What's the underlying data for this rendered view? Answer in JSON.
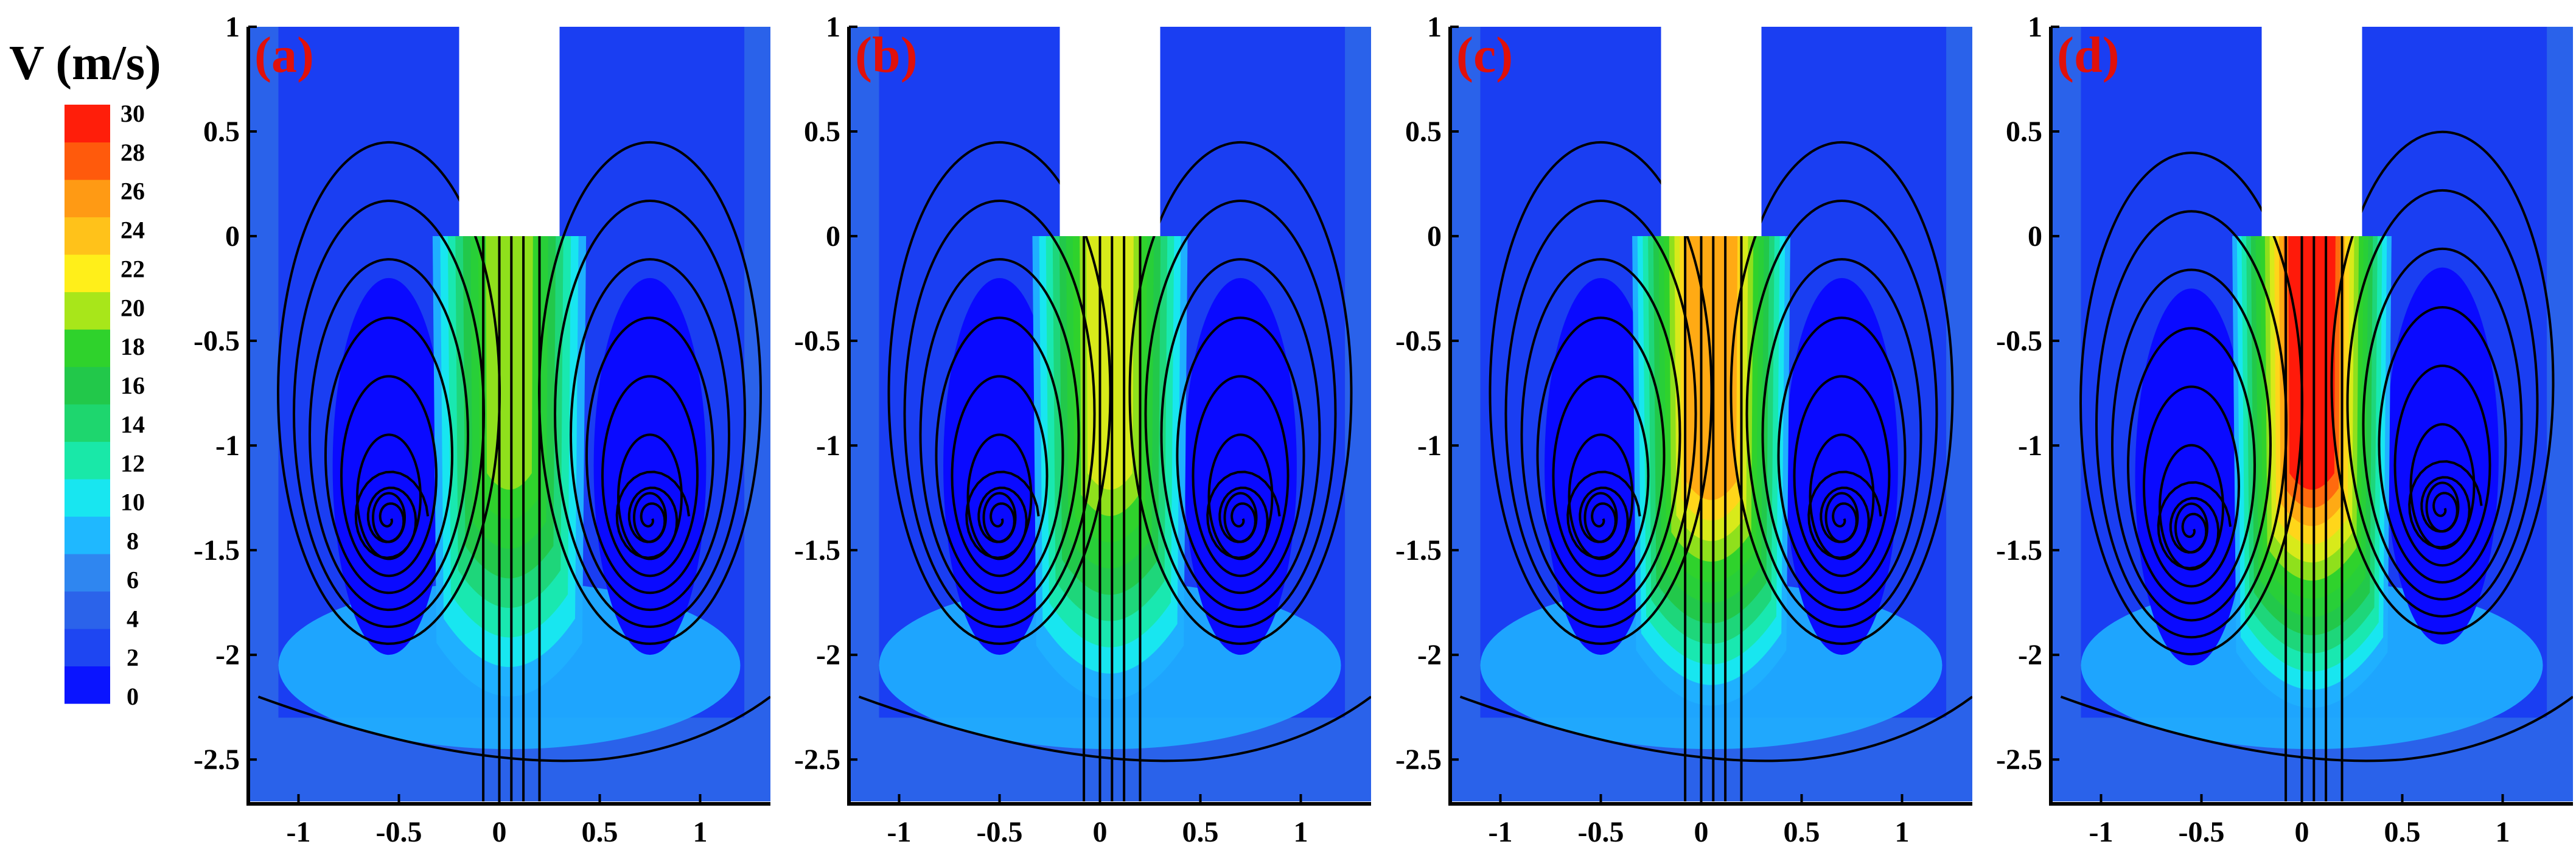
{
  "chart_data": [
    {
      "type": "heatmap",
      "panel": "(a)",
      "colorbar_title": "V (m/s)",
      "jet_max_velocity": 20,
      "xlim": [
        -1.25,
        1.35
      ],
      "ylim": [
        -2.7,
        1.0
      ],
      "xticks": [
        -1,
        -0.5,
        0,
        0.5,
        1
      ],
      "yticks": [
        1,
        0.5,
        0,
        -0.5,
        -1,
        -1.5,
        -2,
        -2.5
      ],
      "vortex_centers": [
        [
          -0.55,
          -1.35
        ],
        [
          0.75,
          -1.35
        ]
      ]
    },
    {
      "type": "heatmap",
      "panel": "(b)",
      "jet_max_velocity": 22,
      "xlim": [
        -1.25,
        1.35
      ],
      "ylim": [
        -2.7,
        1.0
      ],
      "xticks": [
        -1,
        -0.5,
        0,
        0.5,
        1
      ],
      "yticks": [
        1,
        0.5,
        0,
        -0.5,
        -1,
        -1.5,
        -2,
        -2.5
      ],
      "vortex_centers": [
        [
          -0.5,
          -1.35
        ],
        [
          0.7,
          -1.35
        ]
      ]
    },
    {
      "type": "heatmap",
      "panel": "(c)",
      "jet_max_velocity": 27,
      "xlim": [
        -1.25,
        1.35
      ],
      "ylim": [
        -2.7,
        1.0
      ],
      "xticks": [
        -1,
        -0.5,
        0,
        0.5,
        1
      ],
      "yticks": [
        1,
        0.5,
        0,
        -0.5,
        -1,
        -1.5,
        -2,
        -2.5
      ],
      "vortex_centers": [
        [
          -0.5,
          -1.35
        ],
        [
          0.7,
          -1.35
        ]
      ]
    },
    {
      "type": "heatmap",
      "panel": "(d)",
      "jet_max_velocity": 30,
      "xlim": [
        -1.25,
        1.35
      ],
      "ylim": [
        -2.7,
        1.0
      ],
      "xticks": [
        -1,
        -0.5,
        0,
        0.5,
        1
      ],
      "yticks": [
        1,
        0.5,
        0,
        -0.5,
        -1,
        -1.5,
        -2,
        -2.5
      ],
      "vortex_centers": [
        [
          -0.55,
          -1.4
        ],
        [
          0.7,
          -1.3
        ]
      ]
    }
  ],
  "colorbar": {
    "title": "V (m/s)",
    "labels": [
      "30",
      "28",
      "26",
      "24",
      "22",
      "20",
      "18",
      "16",
      "14",
      "12",
      "10",
      "8",
      "6",
      "4",
      "2",
      "0"
    ],
    "colors": [
      "#0a14ff",
      "#1e46f2",
      "#2b63ea",
      "#2f86f0",
      "#1fb8ff",
      "#18e6f0",
      "#19e8a8",
      "#1ed66e",
      "#22c84a",
      "#2fd22c",
      "#a8e61a",
      "#ffef1a",
      "#ffc21a",
      "#ff9a14",
      "#ff5a0c",
      "#ff1e0a"
    ]
  }
}
